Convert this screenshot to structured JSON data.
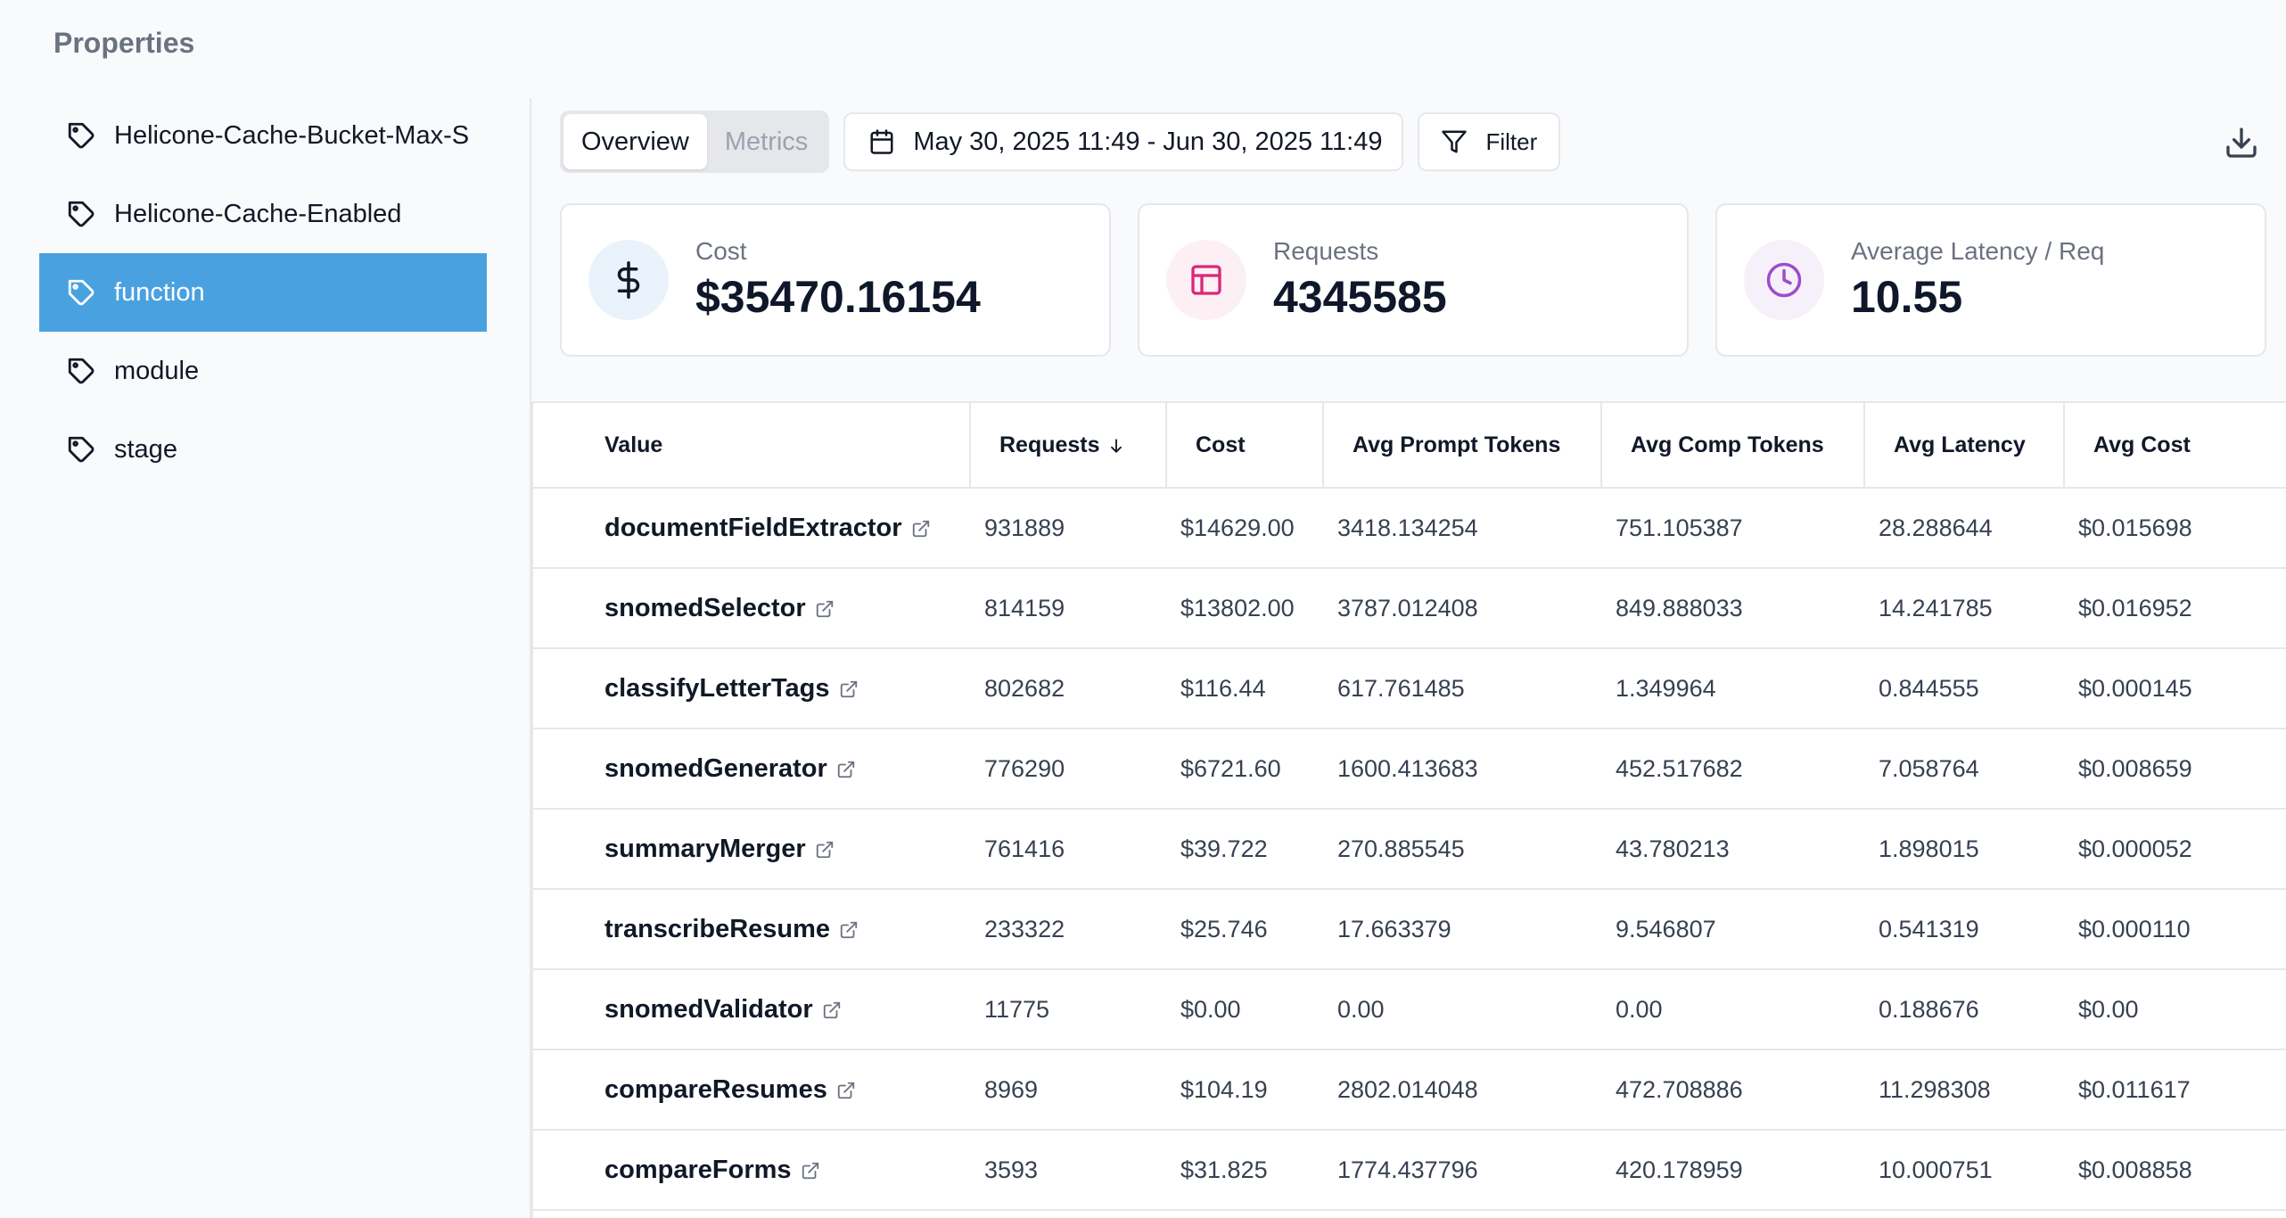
{
  "properties_title": "Properties",
  "sidebar": {
    "items": [
      {
        "label": "Helicone-Cache-Bucket-Max-S",
        "active": false
      },
      {
        "label": "Helicone-Cache-Enabled",
        "active": false
      },
      {
        "label": "function",
        "active": true
      },
      {
        "label": "module",
        "active": false
      },
      {
        "label": "stage",
        "active": false
      }
    ]
  },
  "toolbar": {
    "tabs": [
      {
        "label": "Overview",
        "active": true
      },
      {
        "label": "Metrics",
        "active": false
      }
    ],
    "date_range": "May 30, 2025 11:49 - Jun 30, 2025 11:49",
    "filter_label": "Filter"
  },
  "cards": [
    {
      "label": "Cost",
      "value": "$35470.16154",
      "icon": "dollar-icon",
      "color": "#eaf3fb"
    },
    {
      "label": "Requests",
      "value": "4345585",
      "icon": "table-icon",
      "color": "#fdf0f5"
    },
    {
      "label": "Average Latency / Req",
      "value": "10.55",
      "icon": "clock-icon",
      "color": "#f6f0fb"
    }
  ],
  "table": {
    "columns": [
      "Value",
      "Requests",
      "Cost",
      "Avg Prompt Tokens",
      "Avg Comp Tokens",
      "Avg Latency",
      "Avg Cost"
    ],
    "rows": [
      [
        "documentFieldExtractor",
        "931889",
        "$14629.00",
        "3418.134254",
        "751.105387",
        "28.288644",
        "$0.015698"
      ],
      [
        "snomedSelector",
        "814159",
        "$13802.00",
        "3787.012408",
        "849.888033",
        "14.241785",
        "$0.016952"
      ],
      [
        "classifyLetterTags",
        "802682",
        "$116.44",
        "617.761485",
        "1.349964",
        "0.844555",
        "$0.000145"
      ],
      [
        "snomedGenerator",
        "776290",
        "$6721.60",
        "1600.413683",
        "452.517682",
        "7.058764",
        "$0.008659"
      ],
      [
        "summaryMerger",
        "761416",
        "$39.722",
        "270.885545",
        "43.780213",
        "1.898015",
        "$0.000052"
      ],
      [
        "transcribeResume",
        "233322",
        "$25.746",
        "17.663379",
        "9.546807",
        "0.541319",
        "$0.000110"
      ],
      [
        "snomedValidator",
        "11775",
        "$0.00",
        "0.00",
        "0.00",
        "0.188676",
        "$0.00"
      ],
      [
        "compareResumes",
        "8969",
        "$104.19",
        "2802.014048",
        "472.708886",
        "11.298308",
        "$0.011617"
      ],
      [
        "compareForms",
        "3593",
        "$31.825",
        "1774.437796",
        "420.178959",
        "10.000751",
        "$0.008858"
      ]
    ]
  },
  "accent_color": "#4aa1e0"
}
